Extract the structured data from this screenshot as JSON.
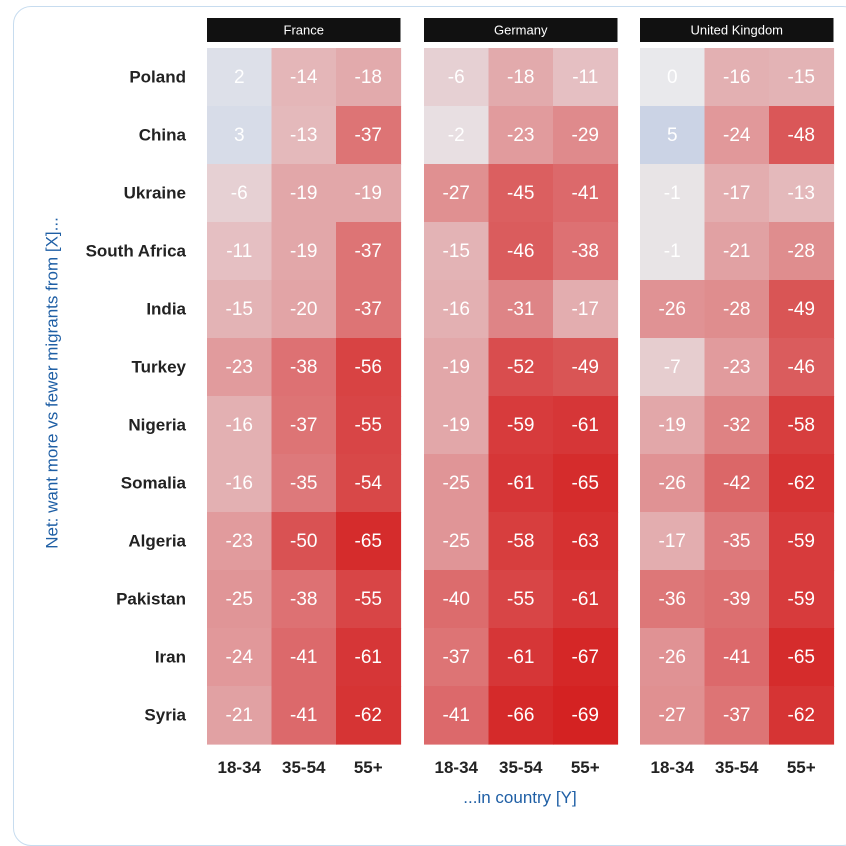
{
  "chart_data": {
    "type": "heatmap",
    "ylabel": "Net: want more vs fewer migrants from [X]...",
    "xlabel": "...in country [Y]",
    "rows": [
      "Poland",
      "China",
      "Ukraine",
      "South Africa",
      "India",
      "Turkey",
      "Nigeria",
      "Somalia",
      "Algeria",
      "Pakistan",
      "Iran",
      "Syria"
    ],
    "columns": [
      "18-34",
      "35-54",
      "55+"
    ],
    "panels": [
      {
        "name": "France",
        "values": [
          [
            2,
            -14,
            -18
          ],
          [
            3,
            -13,
            -37
          ],
          [
            -6,
            -19,
            -19
          ],
          [
            -11,
            -19,
            -37
          ],
          [
            -15,
            -20,
            -37
          ],
          [
            -23,
            -38,
            -56
          ],
          [
            -16,
            -37,
            -55
          ],
          [
            -16,
            -35,
            -54
          ],
          [
            -23,
            -50,
            -65
          ],
          [
            -25,
            -38,
            -55
          ],
          [
            -24,
            -41,
            -61
          ],
          [
            -21,
            -41,
            -62
          ]
        ]
      },
      {
        "name": "Germany",
        "values": [
          [
            -6,
            -18,
            -11
          ],
          [
            -2,
            -23,
            -29
          ],
          [
            -27,
            -45,
            -41
          ],
          [
            -15,
            -46,
            -38
          ],
          [
            -16,
            -31,
            -17
          ],
          [
            -19,
            -52,
            -49
          ],
          [
            -19,
            -59,
            -61
          ],
          [
            -25,
            -61,
            -65
          ],
          [
            -25,
            -58,
            -63
          ],
          [
            -40,
            -55,
            -61
          ],
          [
            -37,
            -61,
            -67
          ],
          [
            -41,
            -66,
            -69
          ]
        ]
      },
      {
        "name": "United Kingdom",
        "values": [
          [
            0,
            -16,
            -15
          ],
          [
            5,
            -24,
            -48
          ],
          [
            -1,
            -17,
            -13
          ],
          [
            -1,
            -21,
            -28
          ],
          [
            -26,
            -28,
            -49
          ],
          [
            -7,
            -23,
            -46
          ],
          [
            -19,
            -32,
            -58
          ],
          [
            -26,
            -42,
            -62
          ],
          [
            -17,
            -35,
            -59
          ],
          [
            -36,
            -39,
            -59
          ],
          [
            -26,
            -41,
            -65
          ],
          [
            -27,
            -37,
            -62
          ]
        ]
      }
    ],
    "color_scale": {
      "positive": "#b9c6e0",
      "neutral": "#e9e9ec",
      "negative": "#d42020"
    },
    "header_color": "#111111",
    "label_color": "#1f5fa5"
  }
}
